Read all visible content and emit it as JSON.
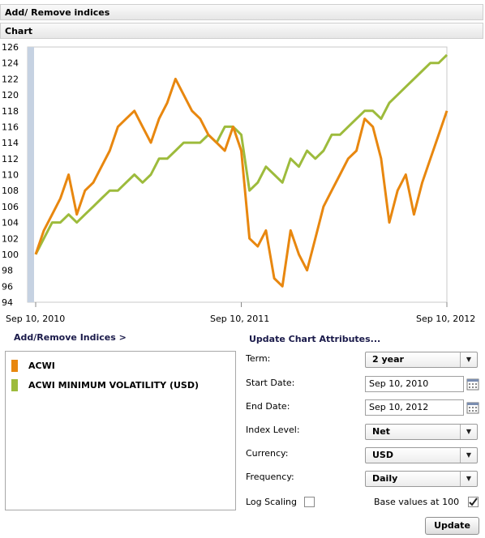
{
  "panel_title": "Add/ Remove indices",
  "chart_header": "Chart",
  "chart_data": {
    "type": "line",
    "yticks": [
      126,
      124,
      122,
      120,
      118,
      116,
      114,
      112,
      110,
      108,
      106,
      104,
      102,
      100,
      98,
      96,
      94
    ],
    "ylim": [
      94,
      126
    ],
    "xticks": [
      "Sep 10, 2010",
      "Sep 10, 2011",
      "Sep 10, 2012"
    ],
    "x": [
      0.0,
      0.02,
      0.04,
      0.06,
      0.08,
      0.1,
      0.12,
      0.14,
      0.16,
      0.18,
      0.2,
      0.22,
      0.24,
      0.26,
      0.28,
      0.3,
      0.32,
      0.34,
      0.36,
      0.38,
      0.4,
      0.42,
      0.44,
      0.46,
      0.48,
      0.5,
      0.52,
      0.54,
      0.56,
      0.58,
      0.6,
      0.62,
      0.64,
      0.66,
      0.68,
      0.7,
      0.72,
      0.74,
      0.76,
      0.78,
      0.8,
      0.82,
      0.84,
      0.86,
      0.88,
      0.9,
      0.92,
      0.94,
      0.96,
      0.98,
      1.0
    ],
    "series": [
      {
        "name": "ACWI",
        "color": "#e8870f",
        "values": [
          100,
          103,
          105,
          107,
          110,
          105,
          108,
          109,
          111,
          113,
          116,
          117,
          118,
          116,
          114,
          117,
          119,
          122,
          120,
          118,
          117,
          115,
          114,
          113,
          116,
          113,
          102,
          101,
          103,
          97,
          96,
          103,
          100,
          98,
          102,
          106,
          108,
          110,
          112,
          113,
          117,
          116,
          112,
          104,
          108,
          110,
          105,
          109,
          112,
          115,
          118
        ]
      },
      {
        "name": "ACWI MINIMUM VOLATILITY (USD)",
        "color": "#9dbb3c",
        "values": [
          100,
          102,
          104,
          104,
          105,
          104,
          105,
          106,
          107,
          108,
          108,
          109,
          110,
          109,
          110,
          112,
          112,
          113,
          114,
          114,
          114,
          115,
          114,
          116,
          116,
          115,
          108,
          109,
          111,
          110,
          109,
          112,
          111,
          113,
          112,
          113,
          115,
          115,
          116,
          117,
          118,
          118,
          117,
          119,
          120,
          121,
          122,
          123,
          124,
          124,
          125
        ]
      }
    ]
  },
  "legend_link": "Add/Remove Indices >",
  "attributes_title": "Update Chart Attributes...",
  "form": {
    "term_label": "Term:",
    "term_value": "2 year",
    "start_label": "Start Date:",
    "start_value": "Sep 10, 2010",
    "end_label": "End Date:",
    "end_value": "Sep 10, 2012",
    "index_label": "Index Level:",
    "index_value": "Net",
    "currency_label": "Currency:",
    "currency_value": "USD",
    "frequency_label": "Frequency:",
    "frequency_value": "Daily",
    "log_label": "Log Scaling",
    "log_checked": false,
    "base_label": "Base values at 100",
    "base_checked": true,
    "update_label": "Update"
  },
  "icons": {
    "dropdown": "triangle-down-icon",
    "calendar": "calendar-icon",
    "check": "check-icon"
  }
}
